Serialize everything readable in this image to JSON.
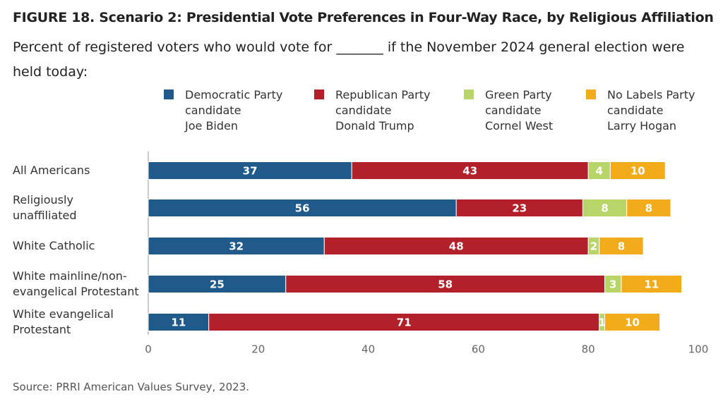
{
  "chart_data": {
    "type": "stacked-bar-horizontal",
    "title": "FIGURE 18.  Scenario 2: Presidential Vote Preferences in Four-Way Race, by Religious Affiliation",
    "subtitle": "Percent of registered voters who would vote for _______ if the November 2024 general election were held today:",
    "source": "Source: PRRI American Values Survey, 2023.",
    "categories": [
      "All Americans",
      "Religiously\nunaffiliated",
      "White Catholic",
      "White mainline/non-\nevangelical Protestant",
      "White evangelical\nProtestant"
    ],
    "series": [
      {
        "name": "Democratic Party\ncandidate\nJoe Biden",
        "color": "#1f5a8a",
        "values": [
          37,
          56,
          32,
          25,
          11
        ]
      },
      {
        "name": "Republican Party\ncandidate\nDonald Trump",
        "color": "#b2202a",
        "values": [
          43,
          23,
          48,
          58,
          71
        ]
      },
      {
        "name": "Green Party\ncandidate\nCornel West",
        "color": "#b8d56a",
        "values": [
          4,
          8,
          2,
          3,
          1
        ]
      },
      {
        "name": "No Labels Party\ncandidate\nLarry Hogan",
        "color": "#f2ab1b",
        "values": [
          10,
          8,
          8,
          11,
          10
        ]
      }
    ],
    "xlim": [
      0,
      100
    ],
    "xticks": [
      0,
      20,
      40,
      60,
      80,
      100
    ],
    "grid": false,
    "legend": "top"
  }
}
